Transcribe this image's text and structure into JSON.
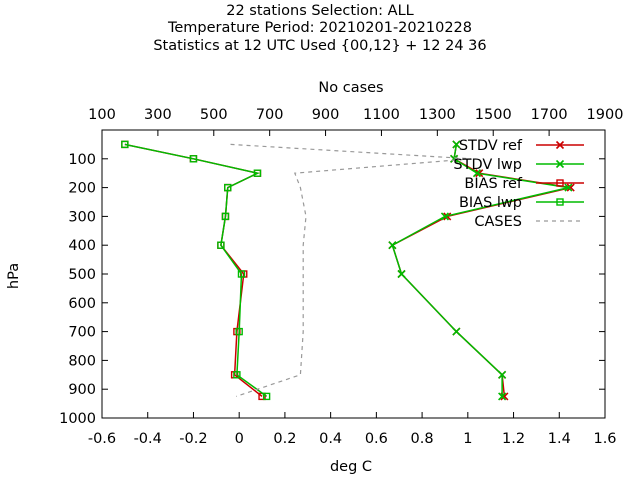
{
  "chart_data": {
    "type": "line",
    "title_lines": [
      "22 stations Selection: ALL",
      "Temperature  Period: 20210201-20210228",
      "Statistics at 12 UTC  Used {00,12} + 12 24 36"
    ],
    "xlabel": "deg C",
    "ylabel": "hPa",
    "x2label": "No cases",
    "xlim": [
      -0.6,
      1.6
    ],
    "x_ticks": [
      "-0.6",
      "-0.4",
      "-0.2",
      "0",
      "0.2",
      "0.4",
      "0.6",
      "0.8",
      "1",
      "1.2",
      "1.4",
      "1.6"
    ],
    "x2lim": [
      100,
      1900
    ],
    "x2_ticks": [
      "100",
      "300",
      "500",
      "700",
      "900",
      "1100",
      "1300",
      "1500",
      "1700",
      "1900"
    ],
    "ylim": [
      1000,
      0
    ],
    "y_ticks": [
      "100",
      "200",
      "300",
      "400",
      "500",
      "600",
      "700",
      "800",
      "900",
      "1000"
    ],
    "legend_position": "top-right",
    "pressure_levels_main": [
      50,
      100,
      150,
      200,
      300,
      400,
      500,
      700,
      850,
      925
    ],
    "pressure_levels_cases": [
      50,
      100,
      150,
      200,
      300,
      400,
      500,
      700,
      850,
      925
    ],
    "series": [
      {
        "name": "STDV ref",
        "color": "#cc0000",
        "marker": "x",
        "values": [
          0.95,
          0.94,
          1.05,
          1.45,
          0.91,
          0.67,
          0.71,
          0.95,
          1.15,
          1.16
        ]
      },
      {
        "name": "STDV lwp",
        "color": "#00bb00",
        "marker": "x",
        "values": [
          0.95,
          0.94,
          1.04,
          1.44,
          0.9,
          0.67,
          0.71,
          0.95,
          1.15,
          1.15
        ]
      },
      {
        "name": "BIAS ref",
        "color": "#cc0000",
        "marker": "square",
        "values": [
          -0.5,
          -0.2,
          0.08,
          -0.05,
          -0.06,
          -0.08,
          0.02,
          -0.01,
          -0.02,
          0.1
        ]
      },
      {
        "name": "BIAS lwp",
        "color": "#00bb00",
        "marker": "square",
        "values": [
          -0.5,
          -0.2,
          0.08,
          -0.05,
          -0.06,
          -0.08,
          0.01,
          0.0,
          -0.01,
          0.12
        ]
      },
      {
        "name": "CASES",
        "color": "#999999",
        "marker": "none",
        "dashed": true,
        "axis": "x2",
        "values": [
          560,
          1420,
          790,
          810,
          830,
          820,
          820,
          820,
          810,
          580
        ]
      }
    ]
  }
}
